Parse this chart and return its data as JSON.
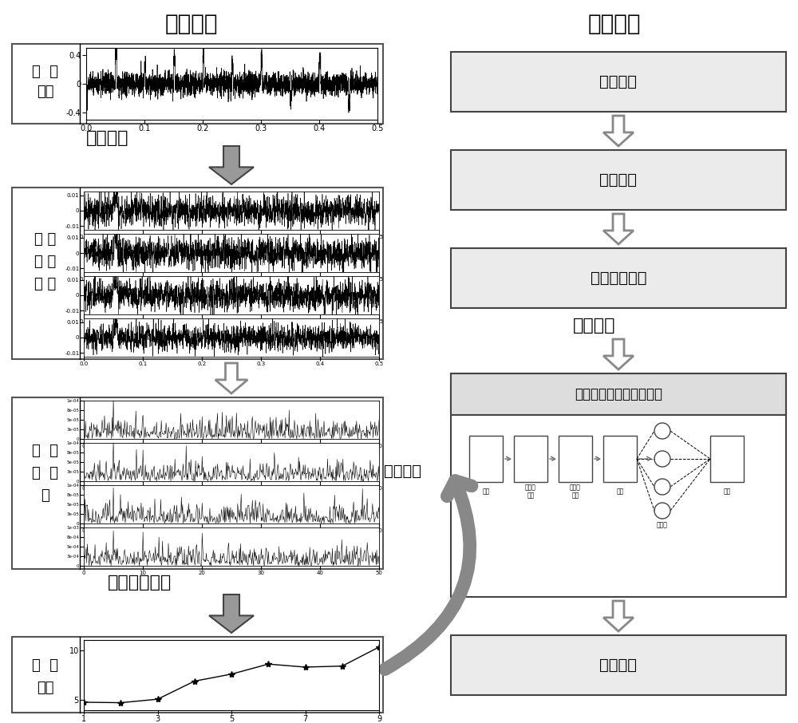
{
  "title_train": "训练阶段",
  "title_test": "测试阶段",
  "label_train_sample_1": "训  练",
  "label_train_sample_2": "样本",
  "label_signal": "信号处理",
  "label_vmd_1": "变 分",
  "label_vmd_2": "模 态",
  "label_vmd_3": "分 解",
  "label_envelope_1": "包  络",
  "label_envelope_2": "阶  次",
  "label_envelope_3": "谱",
  "label_effective": "有效分量选择",
  "label_kurtosis_1": "包  络",
  "label_kurtosis_2": "峭度",
  "label_test_sample": "测试样本",
  "label_test_signal": "信号处理",
  "label_test_effective": "有效分量选择",
  "label_model_test": "模型测试",
  "label_model_name": "多尺度卷积神经网络模型",
  "label_diagnosis": "诊断结果",
  "label_model_train": "模型训练",
  "label_input": "输入",
  "label_maxpool": "最大值\n池化",
  "label_multiscale": "多尺度\n卷积",
  "label_weighted": "加权",
  "label_output": "输出",
  "label_fc": "全连接",
  "bg_color": "#ffffff"
}
